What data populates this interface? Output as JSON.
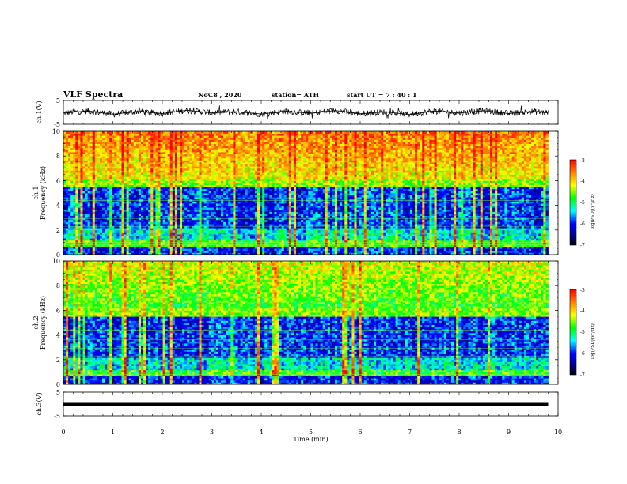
{
  "header": {
    "title": "VLF Spectra",
    "date": "Nov.8  , 2020",
    "station": "station= ATH",
    "start": "start  UT  =   7 : 40 : 1"
  },
  "colorbar": {
    "label": "log(PSD)(V²/Hz)",
    "ticks": [
      "-3",
      "-4",
      "-5",
      "-6",
      "-7"
    ],
    "colors": [
      "#ff0000",
      "#ff8000",
      "#ffff00",
      "#00ff00",
      "#00ffff",
      "#0000ff",
      "#000080",
      "#000000"
    ]
  },
  "chart_data": [
    {
      "type": "line",
      "panel": "ch1_waveform",
      "ylabel": "ch.1(V)",
      "ylim": [
        -5,
        5
      ],
      "yticks": [
        "5",
        "-5"
      ],
      "x": [
        0,
        0.5,
        1,
        1.5,
        2,
        2.5,
        3,
        3.5,
        4,
        4.5,
        5,
        5.5,
        6,
        6.5,
        7,
        7.5,
        8,
        8.5,
        9,
        9.5,
        9.8
      ],
      "y": [
        -0.3,
        0.6,
        -0.8,
        0.4,
        -0.5,
        0.9,
        -0.2,
        0.3,
        -0.7,
        0.5,
        -0.4,
        0.8,
        -0.6,
        0.2,
        -0.9,
        0.6,
        -0.3,
        0.7,
        -0.5,
        0.4,
        -0.2
      ]
    },
    {
      "type": "heatmap",
      "panel": "ch1_spectrogram",
      "ylabel": "ch.1\nFrequency  (kHz)",
      "ylim": [
        0,
        10
      ],
      "yticks": [
        "0",
        "2",
        "4",
        "6",
        "8",
        "10"
      ],
      "z_range": [
        -7,
        -3
      ]
    },
    {
      "type": "heatmap",
      "panel": "ch2_spectrogram",
      "ylabel": "ch.2\nFrequency  (kHz)",
      "ylim": [
        0,
        10
      ],
      "yticks": [
        "0",
        "2",
        "4",
        "6",
        "8",
        "10"
      ],
      "z_range": [
        -7,
        -3
      ]
    },
    {
      "type": "line",
      "panel": "ch3_waveform",
      "ylabel": "ch.3(V)",
      "ylim": [
        -5,
        5
      ],
      "yticks": [
        "5",
        "-5"
      ],
      "x": [
        0,
        9.8
      ],
      "y": [
        0,
        0
      ]
    }
  ],
  "xaxis": {
    "label": "Time  (min)",
    "xlim": [
      0,
      10
    ],
    "ticks": [
      "0",
      "1",
      "2",
      "3",
      "4",
      "5",
      "6",
      "7",
      "8",
      "9",
      "10"
    ]
  }
}
